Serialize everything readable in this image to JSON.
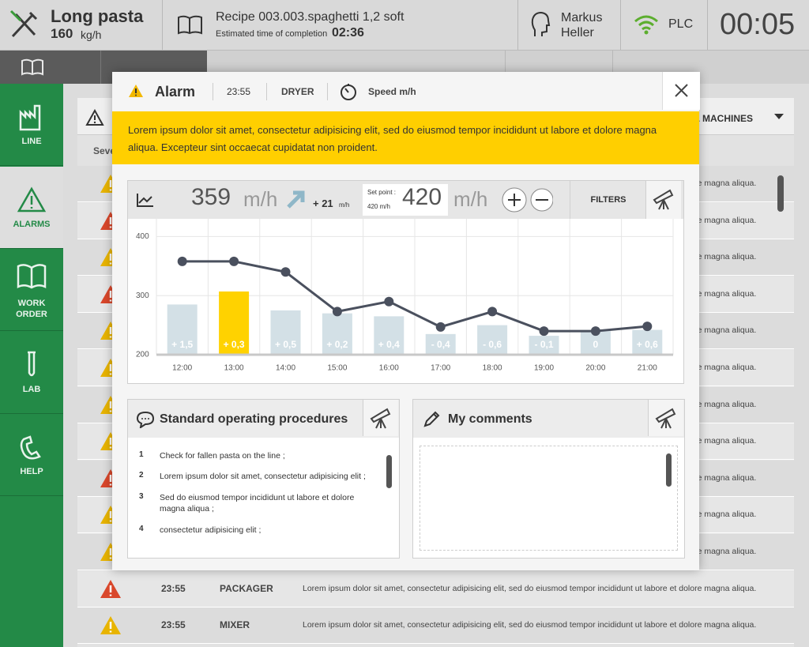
{
  "header": {
    "product": "Long pasta",
    "rate_value": "160",
    "rate_unit": "kg/h",
    "recipe": "Recipe 003.003.spaghetti 1,2 soft",
    "eta_label": "Estimated time of completion",
    "eta": "02:36",
    "user_first": "Markus",
    "user_last": "Heller",
    "connection": "PLC",
    "clock": "00:05"
  },
  "sidebar": [
    {
      "label": "LINE"
    },
    {
      "label": "ALARMS"
    },
    {
      "label": "WORK ORDER"
    },
    {
      "label": "LAB"
    },
    {
      "label": "HELP"
    }
  ],
  "alarm_list": {
    "filter": "ALL MACHINES",
    "column": "Severity",
    "rows": [
      {
        "message": "Lorem ipsum dolor sit amet, consectetur adipisicing elit, sed do eiusmod tempor incididunt ut labore et dolore magna aliqua.",
        "icon_color": "#e8b400"
      },
      {
        "message": "Lorem ipsum dolor sit amet, consectetur adipisicing elit, sed do eiusmod tempor incididunt ut labore et dolore magna aliqua.",
        "icon_color": "#d9472b"
      },
      {
        "message": "Lorem ipsum dolor sit amet, consectetur adipisicing elit, sed do eiusmod tempor incididunt ut labore et dolore magna aliqua.",
        "icon_color": "#e8b400"
      },
      {
        "message": "Lorem ipsum dolor sit amet, consectetur adipisicing elit, sed do eiusmod tempor incididunt ut labore et dolore magna aliqua.",
        "icon_color": "#d9472b"
      },
      {
        "message": "Lorem ipsum dolor sit amet, consectetur adipisicing elit, sed do eiusmod tempor incididunt ut labore et dolore magna aliqua.",
        "icon_color": "#e8b400"
      },
      {
        "message": "Lorem ipsum dolor sit amet, consectetur adipisicing elit, sed do eiusmod tempor incididunt ut labore et dolore magna aliqua.",
        "icon_color": "#e8b400"
      },
      {
        "message": "Lorem ipsum dolor sit amet, consectetur adipisicing elit, sed do eiusmod tempor incididunt ut labore et dolore magna aliqua.",
        "icon_color": "#e8b400"
      },
      {
        "message": "Lorem ipsum dolor sit amet, consectetur adipisicing elit, sed do eiusmod tempor incididunt ut labore et dolore magna aliqua.",
        "icon_color": "#e8b400"
      },
      {
        "message": "Lorem ipsum dolor sit amet, consectetur adipisicing elit, sed do eiusmod tempor incididunt ut labore et dolore magna aliqua.",
        "icon_color": "#d9472b"
      },
      {
        "message": "Lorem ipsum dolor sit amet, consectetur adipisicing elit, sed do eiusmod tempor incididunt ut labore et dolore magna aliqua.",
        "icon_color": "#e8b400"
      },
      {
        "message": "Lorem ipsum dolor sit amet, consectetur adipisicing elit, sed do eiusmod tempor incididunt ut labore et dolore magna aliqua.",
        "icon_color": "#e8b400"
      },
      {
        "time": "23:55",
        "machine": "PACKAGER",
        "message": "Lorem ipsum dolor sit amet, consectetur adipisicing elit, sed do eiusmod tempor incididunt ut labore et dolore magna aliqua.",
        "icon_color": "#d9472b"
      },
      {
        "time": "23:55",
        "machine": "MIXER",
        "message": "Lorem ipsum dolor sit amet, consectetur adipisicing elit, sed do eiusmod tempor incididunt ut labore et dolore magna aliqua.",
        "icon_color": "#e8b400"
      }
    ]
  },
  "modal": {
    "title": "Alarm",
    "time": "23:55",
    "machine": "DRYER",
    "metric": "Speed m/h",
    "message": "Lorem ipsum dolor sit amet, consectetur adipisicing elit, sed do eiusmod tempor incididunt ut labore et dolore magna aliqua. Excepteur sint occaecat cupidatat non proident.",
    "current": "359",
    "current_unit": "m/h",
    "delta": "+ 21",
    "delta_unit": "m/h",
    "setpoint_label": "Set point :",
    "setpoint_small": "420 m/h",
    "setpoint": "420",
    "setpoint_unit": "m/h",
    "filters": "FILTERS",
    "sop_title": "Standard operating procedures",
    "sop_steps": [
      {
        "n": "1",
        "text": "Check for fallen pasta on the line ;"
      },
      {
        "n": "2",
        "text": "Lorem ipsum dolor sit amet, consectetur adipisicing elit ;"
      },
      {
        "n": "3",
        "text": "Sed do eiusmod tempor incididunt ut labore et dolore magna aliqua ;"
      },
      {
        "n": "4",
        "text": "consectetur adipisicing elit ;"
      }
    ],
    "comments_title": "My comments"
  },
  "chart_data": {
    "type": "bar-line",
    "categories": [
      "12:00",
      "13:00",
      "14:00",
      "15:00",
      "16:00",
      "17:00",
      "18:00",
      "19:00",
      "20:00",
      "21:00"
    ],
    "bars": {
      "values": [
        285,
        307,
        275,
        270,
        265,
        235,
        250,
        232,
        240,
        242
      ],
      "labels": [
        "+ 1,5",
        "+ 0,3",
        "+ 0,5",
        "+ 0,2",
        "+ 0,4",
        "- 0,4",
        "- 0,6",
        "- 0,1",
        "0",
        "+ 0,6"
      ],
      "colors": [
        "#d3e0e6",
        "#ffd200",
        "#d3e0e6",
        "#d3e0e6",
        "#d3e0e6",
        "#d3e0e6",
        "#d3e0e6",
        "#d3e0e6",
        "#d3e0e6",
        "#d3e0e6"
      ]
    },
    "line": {
      "values": [
        358,
        358,
        340,
        273,
        290,
        247,
        273,
        240,
        240,
        248
      ],
      "color": "#4a505e"
    },
    "ylim": [
      200,
      430
    ],
    "yticks": [
      200,
      300,
      400
    ],
    "grid": true
  }
}
